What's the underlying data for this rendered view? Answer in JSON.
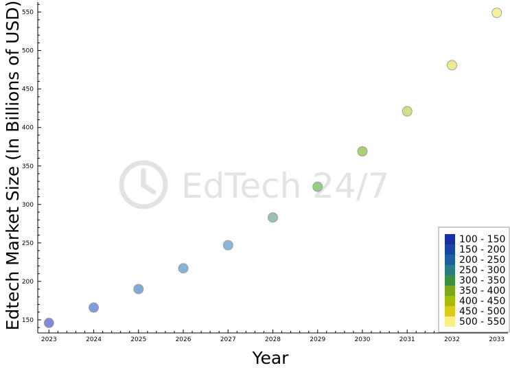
{
  "chart_data": {
    "type": "scatter",
    "title": "",
    "xlabel": "Year",
    "ylabel": "Edtech Market Size (In Billions of USD)",
    "x": [
      2023,
      2024,
      2025,
      2026,
      2027,
      2028,
      2029,
      2030,
      2031,
      2032,
      2033
    ],
    "y": [
      146,
      166,
      190,
      217,
      247,
      283,
      323,
      369,
      421,
      481,
      549
    ],
    "xlim": [
      2022.75,
      2033.25
    ],
    "ylim": [
      133,
      563
    ],
    "x_ticks": [
      "2023",
      "2024",
      "2025",
      "2026",
      "2027",
      "2028",
      "2029",
      "2030",
      "2031",
      "2032",
      "2033"
    ],
    "y_ticks": [
      "150",
      "200",
      "250",
      "300",
      "350",
      "400",
      "450",
      "500",
      "550"
    ],
    "point_colors": [
      "#7a82d6",
      "#7b96d8",
      "#7ca4d6",
      "#7eaed4",
      "#7fb3d8",
      "#92bdb0",
      "#8ccb82",
      "#a2cf6e",
      "#cbe07e",
      "#ece88e",
      "#f7ef9a"
    ],
    "grid": false,
    "legend": {
      "position": "bottom-right",
      "entries": [
        {
          "label": "100 - 150",
          "color": "#1a2fa0"
        },
        {
          "label": "150 - 200",
          "color": "#1a45a5"
        },
        {
          "label": "200 - 250",
          "color": "#1f5f9f"
        },
        {
          "label": "250 - 300",
          "color": "#2a7c86"
        },
        {
          "label": "300 - 350",
          "color": "#3b8f3e"
        },
        {
          "label": "350 - 400",
          "color": "#7aaa1a"
        },
        {
          "label": "400 - 450",
          "color": "#aabb10"
        },
        {
          "label": "450 - 500",
          "color": "#dccb1a"
        },
        {
          "label": "500 - 550",
          "color": "#f8ef86"
        }
      ]
    }
  },
  "watermark": {
    "text": "EdTech 24/7",
    "icon": "clock-icon"
  }
}
